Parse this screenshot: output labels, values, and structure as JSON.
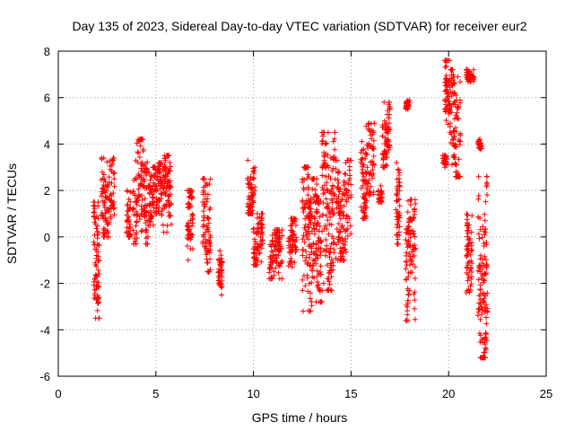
{
  "chart_data": {
    "type": "scatter",
    "title": "Day 135 of 2023, Sidereal Day-to-day VTEC variation (SDTVAR) for receiver eur2",
    "xlabel": "GPS time / hours",
    "ylabel": "SDTVAR / TECUs",
    "xlim": [
      0,
      25
    ],
    "ylim": [
      -6,
      8
    ],
    "xticks": [
      0,
      5,
      10,
      15,
      20,
      25
    ],
    "yticks": [
      -6,
      -4,
      -2,
      0,
      2,
      4,
      6,
      8
    ],
    "grid": true,
    "marker": "+",
    "color": "#ff0000",
    "series": [
      {
        "name": "SDTVAR",
        "clusters": [
          {
            "x0": 1.8,
            "x1": 2.1,
            "ymin": -3.5,
            "ymax": 1.5
          },
          {
            "x0": 2.2,
            "x1": 2.9,
            "ymin": 0.0,
            "ymax": 3.4
          },
          {
            "x0": 3.5,
            "x1": 3.7,
            "ymin": 0.0,
            "ymax": 2.0
          },
          {
            "x0": 3.8,
            "x1": 4.6,
            "ymin": -0.3,
            "ymax": 4.2
          },
          {
            "x0": 4.6,
            "x1": 5.0,
            "ymin": 0.5,
            "ymax": 3.0
          },
          {
            "x0": 5.0,
            "x1": 5.3,
            "ymin": 1.0,
            "ymax": 3.2
          },
          {
            "x0": 5.3,
            "x1": 5.8,
            "ymin": 0.2,
            "ymax": 3.5
          },
          {
            "x0": 6.6,
            "x1": 6.9,
            "ymin": -1.0,
            "ymax": 2.0
          },
          {
            "x0": 7.4,
            "x1": 7.8,
            "ymin": -1.5,
            "ymax": 2.5
          },
          {
            "x0": 8.2,
            "x1": 8.4,
            "ymin": -2.5,
            "ymax": -0.6
          },
          {
            "x0": 9.7,
            "x1": 10.1,
            "ymin": 1.0,
            "ymax": 3.3
          },
          {
            "x0": 10.0,
            "x1": 10.5,
            "ymin": -1.2,
            "ymax": 1.0
          },
          {
            "x0": 10.8,
            "x1": 11.5,
            "ymin": -1.8,
            "ymax": 0.3
          },
          {
            "x0": 11.8,
            "x1": 12.2,
            "ymin": -1.3,
            "ymax": 0.8
          },
          {
            "x0": 12.5,
            "x1": 13.0,
            "ymin": -3.2,
            "ymax": 3.0
          },
          {
            "x0": 13.0,
            "x1": 13.5,
            "ymin": -2.8,
            "ymax": 2.5
          },
          {
            "x0": 13.5,
            "x1": 14.2,
            "ymin": -2.3,
            "ymax": 4.5
          },
          {
            "x0": 14.2,
            "x1": 15.0,
            "ymin": -1.0,
            "ymax": 3.3
          },
          {
            "x0": 15.5,
            "x1": 16.2,
            "ymin": 0.8,
            "ymax": 4.9
          },
          {
            "x0": 16.4,
            "x1": 16.6,
            "ymin": 1.5,
            "ymax": 2.2
          },
          {
            "x0": 16.6,
            "x1": 17.0,
            "ymin": 3.0,
            "ymax": 5.8
          },
          {
            "x0": 17.3,
            "x1": 17.5,
            "ymin": -0.3,
            "ymax": 3.2
          },
          {
            "x0": 17.8,
            "x1": 18.0,
            "ymin": 5.5,
            "ymax": 5.9
          },
          {
            "x0": 17.8,
            "x1": 18.3,
            "ymin": -3.6,
            "ymax": 1.6
          },
          {
            "x0": 19.7,
            "x1": 19.9,
            "ymin": 3.0,
            "ymax": 3.5
          },
          {
            "x0": 19.8,
            "x1": 20.1,
            "ymin": 4.5,
            "ymax": 7.6
          },
          {
            "x0": 20.1,
            "x1": 20.6,
            "ymin": 2.6,
            "ymax": 7.2
          },
          {
            "x0": 20.9,
            "x1": 21.3,
            "ymin": 6.7,
            "ymax": 7.2
          },
          {
            "x0": 20.9,
            "x1": 21.2,
            "ymin": -2.4,
            "ymax": 1.0
          },
          {
            "x0": 21.5,
            "x1": 21.7,
            "ymin": 3.8,
            "ymax": 4.2
          },
          {
            "x0": 21.5,
            "x1": 22.0,
            "ymin": -5.2,
            "ymax": 2.6
          }
        ]
      }
    ]
  }
}
